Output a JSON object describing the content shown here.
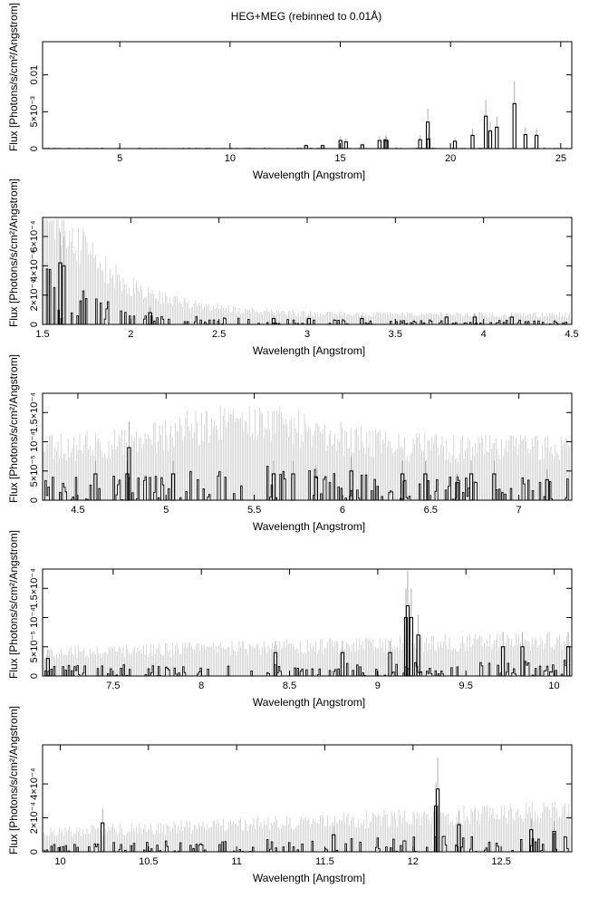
{
  "figure": {
    "title": "HEG+MEG (rebinned to 0.01Å)"
  },
  "chart_data": [
    {
      "type": "line",
      "xlabel": "Wavelength [Angstrom]",
      "ylabel": "Flux [Photons/s/cm²/Angstrom]",
      "xlim": [
        1.5,
        25.5
      ],
      "ylim": [
        0,
        0.0145
      ],
      "x_ticks": [
        {
          "v": 5,
          "label": "5"
        },
        {
          "v": 10,
          "label": "10"
        },
        {
          "v": 15,
          "label": "15"
        },
        {
          "v": 20,
          "label": "20"
        },
        {
          "v": 25,
          "label": "25"
        }
      ],
      "y_ticks": [
        {
          "v": 0,
          "label": "0"
        },
        {
          "v": 0.005,
          "label": "5×10⁻³"
        },
        {
          "v": 0.01,
          "label": "0.01"
        }
      ],
      "series": [
        {
          "x": [
            13.45,
            14.2,
            15.01,
            15.26,
            16.0,
            16.78,
            17.05,
            17.1,
            18.62,
            18.97,
            19.0,
            20.2,
            21.0,
            21.6,
            21.8,
            22.1,
            22.9,
            23.4,
            23.9
          ],
          "y": [
            0.0004,
            0.0004,
            0.0011,
            0.0009,
            0.0005,
            0.0011,
            0.0012,
            0.0011,
            0.0012,
            0.0036,
            0.0013,
            0.001,
            0.0018,
            0.0044,
            0.0024,
            0.0029,
            0.0061,
            0.0019,
            0.0018
          ]
        }
      ]
    },
    {
      "type": "line",
      "xlabel": "Wavelength [Angstrom]",
      "ylabel": "Flux [Photons/s/cm²/Angstrom]",
      "xlim": [
        1.5,
        4.5
      ],
      "ylim": [
        0,
        0.00073
      ],
      "x_ticks": [
        {
          "v": 1.5,
          "label": "1.5"
        },
        {
          "v": 2,
          "label": "2"
        },
        {
          "v": 2.5,
          "label": "2.5"
        },
        {
          "v": 3,
          "label": "3"
        },
        {
          "v": 3.5,
          "label": "3.5"
        },
        {
          "v": 4,
          "label": "4"
        },
        {
          "v": 4.5,
          "label": "4.5"
        }
      ],
      "y_ticks": [
        {
          "v": 0,
          "label": "0"
        },
        {
          "v": 0.0002,
          "label": "2×10⁻⁴"
        },
        {
          "v": 0.0004,
          "label": "4×10⁻⁴"
        },
        {
          "v": 0.0006,
          "label": "6×10⁻⁴"
        }
      ],
      "series": [
        {
          "x": [
            1.6,
            1.62,
            2.11,
            2.81,
            3.01,
            3.31,
            3.79,
            3.95,
            4.16
          ],
          "y": [
            0.00042,
            0.0004,
            8e-05,
            4e-05,
            4e-05,
            4e-05,
            5e-05,
            5e-05,
            5e-05
          ]
        }
      ]
    },
    {
      "type": "line",
      "xlabel": "Wavelength [Angstrom]",
      "ylabel": "Flux [Photons/s/cm²/Angstrom]",
      "xlim": [
        4.3,
        7.3
      ],
      "ylim": [
        0,
        0.000183
      ],
      "x_ticks": [
        {
          "v": 4.5,
          "label": "4.5"
        },
        {
          "v": 5,
          "label": "5"
        },
        {
          "v": 5.5,
          "label": "5.5"
        },
        {
          "v": 6,
          "label": "6"
        },
        {
          "v": 6.5,
          "label": "6.5"
        },
        {
          "v": 7,
          "label": "7"
        }
      ],
      "y_ticks": [
        {
          "v": 0,
          "label": "0"
        },
        {
          "v": 5e-05,
          "label": "5×10⁻⁵"
        },
        {
          "v": 0.0001,
          "label": "10⁻⁴"
        },
        {
          "v": 0.00015,
          "label": "1.5×10⁻⁴"
        }
      ],
      "series": [
        {
          "x": [
            4.6,
            4.78,
            4.79,
            5.04,
            5.61,
            5.72,
            5.85,
            6.05,
            6.34,
            6.47,
            6.65,
            6.73,
            6.86,
            7.16
          ],
          "y": [
            4.5e-05,
            4.5e-05,
            9e-05,
            4.5e-05,
            4.5e-05,
            4.5e-05,
            4e-05,
            5e-05,
            4.5e-05,
            4.5e-05,
            3e-05,
            4.5e-05,
            4.5e-05,
            3.5e-05
          ]
        }
      ]
    },
    {
      "type": "line",
      "xlabel": "Wavelength [Angstrom]",
      "ylabel": "Flux [Photons/s/cm²/Angstrom]",
      "xlim": [
        7.1,
        10.1
      ],
      "ylim": [
        0,
        0.000183
      ],
      "x_ticks": [
        {
          "v": 7.5,
          "label": "7.5"
        },
        {
          "v": 8,
          "label": "8"
        },
        {
          "v": 8.5,
          "label": "8.5"
        },
        {
          "v": 9,
          "label": "9"
        },
        {
          "v": 9.5,
          "label": "9.5"
        },
        {
          "v": 10,
          "label": "10"
        }
      ],
      "y_ticks": [
        {
          "v": 0,
          "label": "0"
        },
        {
          "v": 5e-05,
          "label": "5×10⁻⁵"
        },
        {
          "v": 0.0001,
          "label": "10⁻⁴"
        },
        {
          "v": 0.00015,
          "label": "1.5×10⁻⁴"
        }
      ],
      "series": [
        {
          "x": [
            7.13,
            8.42,
            8.8,
            9.07,
            9.16,
            9.17,
            9.19,
            9.23,
            9.71,
            9.82,
            10.08
          ],
          "y": [
            3e-05,
            4e-05,
            4e-05,
            4e-05,
            0.0001,
            0.00012,
            0.0001,
            7e-05,
            5e-05,
            5e-05,
            5e-05
          ]
        }
      ]
    },
    {
      "type": "line",
      "xlabel": "Wavelength [Angstrom]",
      "ylabel": "Flux [Photons/s/cm²/Angstrom]",
      "xlim": [
        9.9,
        12.9
      ],
      "ylim": [
        0,
        0.00063
      ],
      "x_ticks": [
        {
          "v": 10,
          "label": "10"
        },
        {
          "v": 10.5,
          "label": "10.5"
        },
        {
          "v": 11,
          "label": "11"
        },
        {
          "v": 11.5,
          "label": "11.5"
        },
        {
          "v": 12,
          "label": "12"
        },
        {
          "v": 12.5,
          "label": "12.5"
        }
      ],
      "y_ticks": [
        {
          "v": 0,
          "label": "0"
        },
        {
          "v": 0.0002,
          "label": "2×10⁻⁴"
        },
        {
          "v": 0.0004,
          "label": "4×10⁻⁴"
        }
      ],
      "series": [
        {
          "x": [
            10.24,
            11.55,
            12.13,
            12.14,
            12.26,
            12.67,
            12.8
          ],
          "y": [
            0.00017,
            0.0001,
            0.00027,
            0.00037,
            0.00016,
            0.00013,
            0.00012
          ]
        }
      ]
    }
  ]
}
